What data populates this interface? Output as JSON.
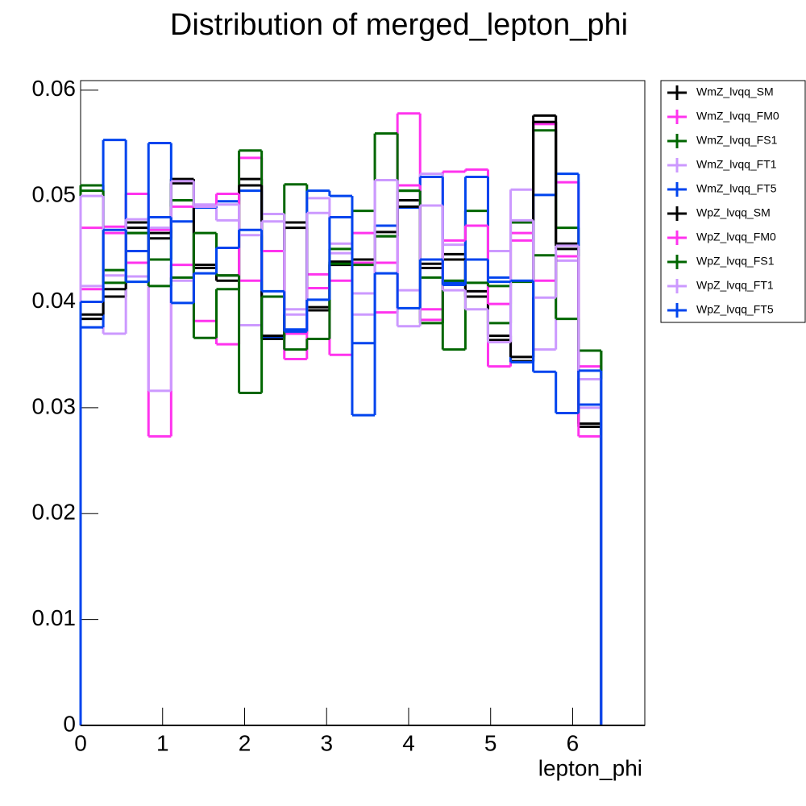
{
  "chart_data": {
    "type": "histogram",
    "title": "Distribution of merged_lepton_phi",
    "x_label": "lepton_phi",
    "bins": [
      0,
      0.276,
      0.552,
      0.828,
      1.104,
      1.38,
      1.656,
      1.932,
      2.208,
      2.484,
      2.76,
      3.036,
      3.312,
      3.588,
      3.864,
      4.14,
      4.416,
      4.692,
      4.968,
      5.244,
      5.52,
      5.796,
      6.072,
      6.348
    ],
    "xlim": [
      0,
      6.88
    ],
    "xticks": [
      0,
      1,
      2,
      3,
      4,
      5,
      6
    ],
    "ylim": [
      0,
      0.0609
    ],
    "yticks": [
      0,
      0.01,
      0.02,
      0.03,
      0.04,
      0.05,
      0.06
    ],
    "legend": "outside-right",
    "series": [
      {
        "name": "WmZ_lvqq_SM",
        "color": "#000000",
        "values": [
          0.0384,
          0.0405,
          0.0475,
          0.0465,
          0.0516,
          0.0435,
          0.042,
          0.0516,
          0.0365,
          0.0475,
          0.0395,
          0.0435,
          0.0436,
          0.0466,
          0.0496,
          0.0436,
          0.0445,
          0.0405,
          0.0364,
          0.0344,
          0.0576,
          0.0455,
          0.0282
        ]
      },
      {
        "name": "WmZ_lvqq_FM0",
        "color": "#ff33ee",
        "values": [
          0.047,
          0.0471,
          0.0502,
          0.0273,
          0.0435,
          0.0382,
          0.036,
          0.0536,
          0.0448,
          0.0346,
          0.0426,
          0.035,
          0.0465,
          0.0437,
          0.0578,
          0.0393,
          0.0523,
          0.0525,
          0.0339,
          0.0465,
          0.0568,
          0.0513,
          0.0339
        ]
      },
      {
        "name": "WmZ_lvqq_FS1",
        "color": "#006600",
        "values": [
          0.051,
          0.043,
          0.0465,
          0.044,
          0.0496,
          0.0366,
          0.0412,
          0.0543,
          0.0448,
          0.0511,
          0.0392,
          0.045,
          0.0486,
          0.0559,
          0.0505,
          0.0423,
          0.0355,
          0.0486,
          0.038,
          0.0475,
          0.0562,
          0.047,
          0.0354
        ]
      },
      {
        "name": "WmZ_lvqq_FT1",
        "color": "#cc99ff",
        "values": [
          0.0415,
          0.037,
          0.0424,
          0.0316,
          0.042,
          0.0492,
          0.0477,
          0.0378,
          0.0483,
          0.0393,
          0.0498,
          0.0455,
          0.0408,
          0.0515,
          0.0411,
          0.0521,
          0.0454,
          0.041,
          0.0448,
          0.0506,
          0.0355,
          0.0439,
          0.03
        ]
      },
      {
        "name": "WmZ_lvqq_FT5",
        "color": "#0044ee",
        "values": [
          0.0376,
          0.0553,
          0.0448,
          0.055,
          0.0476,
          0.0489,
          0.0495,
          0.0505,
          0.0367,
          0.0374,
          0.0505,
          0.05,
          0.0293,
          0.0472,
          0.0489,
          0.0518,
          0.0418,
          0.0518,
          0.0423,
          0.0343,
          0.0501,
          0.0521,
          0.0303
        ]
      },
      {
        "name": "WpZ_lvqq_SM",
        "color": "#000000",
        "values": [
          0.0388,
          0.0412,
          0.047,
          0.046,
          0.0512,
          0.0432,
          0.0425,
          0.051,
          0.0368,
          0.047,
          0.0392,
          0.0438,
          0.044,
          0.0462,
          0.049,
          0.0432,
          0.044,
          0.041,
          0.0368,
          0.0348,
          0.057,
          0.045,
          0.0285
        ]
      },
      {
        "name": "WpZ_lvqq_FM0",
        "color": "#ff33ee",
        "values": [
          0.0412,
          0.0465,
          0.0437,
          0.0468,
          0.049,
          0.049,
          0.0502,
          0.042,
          0.0448,
          0.037,
          0.0413,
          0.042,
          0.0437,
          0.039,
          0.051,
          0.0383,
          0.0458,
          0.0472,
          0.0398,
          0.0458,
          0.042,
          0.0443,
          0.0273
        ]
      },
      {
        "name": "WpZ_lvqq_FS1",
        "color": "#006600",
        "values": [
          0.0505,
          0.0418,
          0.0465,
          0.0415,
          0.0423,
          0.0465,
          0.0425,
          0.0314,
          0.0405,
          0.0355,
          0.0365,
          0.0436,
          0.0435,
          0.0462,
          0.0505,
          0.038,
          0.042,
          0.0418,
          0.0415,
          0.0419,
          0.0444,
          0.0384,
          0.0354
        ]
      },
      {
        "name": "WpZ_lvqq_FT1",
        "color": "#cc99ff",
        "values": [
          0.05,
          0.0425,
          0.0478,
          0.047,
          0.0514,
          0.049,
          0.0492,
          0.0463,
          0.0476,
          0.0388,
          0.0484,
          0.0446,
          0.0388,
          0.0515,
          0.0377,
          0.0491,
          0.0411,
          0.0393,
          0.0362,
          0.0477,
          0.0404,
          0.0453,
          0.0327
        ]
      },
      {
        "name": "WpZ_lvqq_FT5",
        "color": "#0044ee",
        "values": [
          0.04,
          0.0468,
          0.0419,
          0.048,
          0.0399,
          0.0427,
          0.0451,
          0.0468,
          0.041,
          0.0372,
          0.0402,
          0.048,
          0.0361,
          0.0427,
          0.0394,
          0.044,
          0.0416,
          0.044,
          0.0419,
          0.042,
          0.0334,
          0.0295,
          0.0335
        ]
      }
    ]
  }
}
